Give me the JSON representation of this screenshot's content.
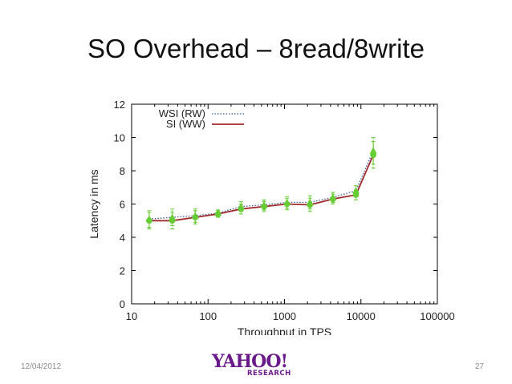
{
  "slide": {
    "title": "SO Overhead – 8read/8write",
    "date": "12/04/2012",
    "page_number": "27",
    "logo_text": "YAHOO!",
    "logo_subtext": "RESEARCH"
  },
  "colors": {
    "wsi_series": "#3a5a9a",
    "si_series": "#a02828",
    "points": "#66cc33",
    "logo": "#6b1a8a"
  },
  "chart_data": {
    "type": "line",
    "xlabel": "Throughput in TPS",
    "ylabel": "Latency in ms",
    "x_scale": "log",
    "xlim": [
      10,
      100000
    ],
    "ylim": [
      0,
      12
    ],
    "x_ticks": [
      10,
      100,
      1000,
      10000,
      100000
    ],
    "x_tick_labels": [
      "10",
      "100",
      "1000",
      "10000",
      "100000"
    ],
    "y_ticks": [
      0,
      2,
      4,
      6,
      8,
      10,
      12
    ],
    "y_tick_labels": [
      "0",
      "2",
      "4",
      "6",
      "8",
      "10",
      "12"
    ],
    "legend_position": "top-left",
    "grid": false,
    "series": [
      {
        "name": "WSI (RW)",
        "style": "dotted",
        "x": [
          17,
          34,
          68,
          135,
          270,
          540,
          1080,
          2150,
          4300,
          8600,
          14500
        ],
        "y": [
          5.1,
          5.2,
          5.3,
          5.45,
          5.85,
          5.95,
          6.1,
          6.1,
          6.4,
          6.8,
          9.2
        ],
        "error": [
          0.5,
          0.5,
          0.4,
          0.2,
          0.3,
          0.3,
          0.35,
          0.4,
          0.3,
          0.3,
          0.8
        ]
      },
      {
        "name": "SI (WW)",
        "style": "solid",
        "x": [
          17,
          34,
          68,
          135,
          270,
          540,
          1080,
          2150,
          4300,
          8600,
          14500
        ],
        "y": [
          5.0,
          5.0,
          5.2,
          5.4,
          5.7,
          5.85,
          6.0,
          5.95,
          6.3,
          6.55,
          8.95
        ],
        "error": [
          0.5,
          0.5,
          0.4,
          0.2,
          0.3,
          0.3,
          0.35,
          0.4,
          0.3,
          0.3,
          0.8
        ]
      }
    ]
  }
}
